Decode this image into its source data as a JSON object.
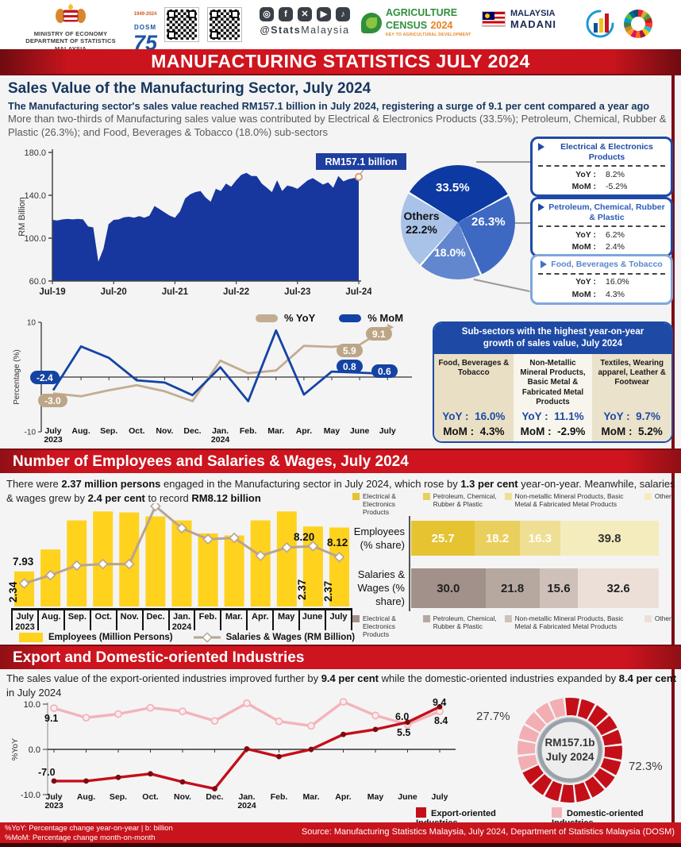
{
  "header": {
    "ministry1": "MINISTRY OF ECONOMY",
    "ministry2": "DEPARTMENT OF STATISTICS MALAYSIA",
    "dosm_top": "1949-2024",
    "dosm_name": "DOSM",
    "dosm_75": "75",
    "handle_bold": "@Stats",
    "handle_rest": "Malaysia",
    "agri1": "AGRICULTURE",
    "agri2a": "CENSUS",
    "agri2b": "2024",
    "agri_tag": "KEY TO AGRICULTURAL DEVELOPMENT",
    "madani1": "MALAYSIA",
    "madani2": "MADANI"
  },
  "banner": {
    "title": "MANUFACTURING STATISTICS JULY 2024"
  },
  "labels": {
    "yoy": "YoY :",
    "mom": "MoM :"
  },
  "sales": {
    "title": "Sales Value of the Manufacturing Sector, July 2024",
    "lead_bold": "The Manufacturing sector's sales value reached RM157.1 billion in July 2024, registering a surge of 9.1 per cent compared a year ago",
    "lead_gray": "More than two-thirds of Manufacturing sales value was contributed by Electrical & Electronics Products (33.5%); Petroleum, Chemical, Rubber & Plastic (26.3%); and Food, Beverages & Tobacco (18.0%) sub-sectors",
    "cards": [
      {
        "title": "Electrical & Electronics Products",
        "yoy": "8.2%",
        "mom": "-5.2%"
      },
      {
        "title": "Petroleum, Chemical, Rubber & Plastic",
        "yoy": "6.2%",
        "mom": "2.4%"
      },
      {
        "title": "Food, Beverages & Tobacco",
        "yoy": "16.0%",
        "mom": "4.3%"
      }
    ],
    "subpanel": {
      "header": "Sub-sectors with the highest year-on-year growth of sales value, July 2024",
      "cols": [
        {
          "name": "Food, Beverages & Tobacco",
          "yoy": "16.0%",
          "mom": "4.3%"
        },
        {
          "name": "Non-Metallic Mineral Products, Basic Metal & Fabricated Metal Products",
          "yoy": "11.1%",
          "mom": "-2.9%"
        },
        {
          "name": "Textiles, Wearing apparel, Leather & Footwear",
          "yoy": "9.7%",
          "mom": "5.2%"
        }
      ]
    }
  },
  "employees": {
    "title": "Number of Employees and Salaries & Wages, July 2024",
    "intro": {
      "t1": "There were ",
      "b1": "2.37 million persons",
      "t2": " engaged in the Manufacturing sector in July 2024, which rose by ",
      "b2": "1.3 per cent",
      "t3": " year-on-year. Meanwhile, salaries & wages grew by ",
      "b3": "2.4 per cent",
      "t4": " to record ",
      "b4": "RM8.12 billion"
    }
  },
  "trade": {
    "title": "Export and Domestic-oriented Industries",
    "intro": {
      "t1": "The sales value of the export-oriented industries improved further by ",
      "b1": "9.4 per cent",
      "t2": " while the domestic-oriented industries expanded by ",
      "b2": "8.4 per cent",
      "t3": " in July 2024"
    }
  },
  "footer": {
    "note1": "%YoY: Percentage change year-on-year | b: billion",
    "note2": "%MoM: Percentage change month-on-month",
    "source": "Source: Manufacturing Statistics Malaysia, July 2024, Department of Statistics Malaysia (DOSM)"
  },
  "chart_data": {
    "sales_area": {
      "type": "area",
      "ylabel": "RM Billion",
      "ylim": [
        60,
        180
      ],
      "yticks": [
        "180.0",
        "140.0",
        "100.0",
        "60.0"
      ],
      "xticks": [
        "Jul-19",
        "Jul-20",
        "Jul-21",
        "Jul-22",
        "Jul-23",
        "Jul-24"
      ],
      "callout": "RM157.1 billion",
      "color": "#17379e",
      "values": [
        117,
        116.5,
        117.5,
        118,
        117.5,
        118,
        117.5,
        111,
        110,
        78,
        90,
        113,
        117,
        117.5,
        119.5,
        120,
        119,
        120.5,
        119,
        121,
        130,
        127,
        124,
        121,
        119,
        125,
        137,
        141,
        143,
        144,
        138,
        134,
        146,
        144,
        151,
        148,
        154,
        159,
        161,
        158,
        158,
        151,
        147,
        143,
        154,
        144,
        149,
        148,
        146,
        150,
        154,
        156,
        153,
        150,
        152,
        147,
        158,
        153,
        155,
        156,
        157.1
      ]
    },
    "sales_pie": {
      "type": "pie",
      "start_angle": -58,
      "others_word": "Others",
      "slices": [
        {
          "name": "Electrical & Electronics Products",
          "pct": 33.5,
          "label": "33.5%",
          "color": "#0d3aa2"
        },
        {
          "name": "Petroleum, Chemical, Rubber & Plastic",
          "pct": 26.3,
          "label": "26.3%",
          "color": "#3e69c3"
        },
        {
          "name": "Food, Beverages & Tobacco",
          "pct": 18.0,
          "label": "18.0%",
          "color": "#6287ce"
        },
        {
          "name": "Others",
          "pct": 22.2,
          "label": "22.2%",
          "color": "#a9c2e8"
        }
      ]
    },
    "sales_growth": {
      "type": "line",
      "ylabel": "Percentage (%)",
      "ylim": [
        -10,
        10
      ],
      "months": [
        "July\n2023",
        "Aug.",
        "Sep.",
        "Oct.",
        "Nov.",
        "Dec.",
        "Jan.\n2024",
        "Feb.",
        "Mar.",
        "Apr.",
        "May",
        "June",
        "July"
      ],
      "series": [
        {
          "name": "% YoY",
          "color": "#c2ad92",
          "values": [
            -3.0,
            -3.5,
            -2.4,
            -1.5,
            -2.6,
            -4.4,
            3.0,
            0.7,
            1.2,
            5.7,
            5.5,
            5.9,
            9.1
          ]
        },
        {
          "name": "% MoM",
          "color": "#1443a4",
          "values": [
            -2.4,
            5.6,
            3.5,
            -0.6,
            -1.0,
            -3.3,
            1.8,
            -4.4,
            8.5,
            -3.2,
            1.0,
            0.8,
            0.6
          ]
        }
      ],
      "point_labels": {
        "mom_first": "-2.4",
        "yoy_first": "-3.0",
        "yoy_jun": "5.9",
        "yoy_jul": "9.1",
        "mom_jun": "0.8",
        "mom_jul": "0.6"
      }
    },
    "employees_bar": {
      "type": "bar+line",
      "months": [
        "July\n2023",
        "Aug.",
        "Sep.",
        "Oct.",
        "Nov.",
        "Dec.",
        "Jan.\n2024",
        "Feb.",
        "Mar.",
        "Apr.",
        "May",
        "June",
        "July"
      ],
      "legend": [
        "Employees (Million Persons)",
        "Salaries & Wages (RM Billion)"
      ],
      "bar_color": "#ffd21e",
      "line_color": "#b8a493",
      "bar_rel_heights": [
        0.35,
        0.57,
        0.86,
        0.95,
        0.94,
        0.9,
        0.86,
        0.73,
        0.71,
        0.86,
        0.95,
        0.8,
        0.79
      ],
      "line_values": [
        7.93,
        7.99,
        8.06,
        8.07,
        8.07,
        8.49,
        8.33,
        8.25,
        8.26,
        8.13,
        8.19,
        8.2,
        8.12
      ],
      "labels": {
        "emp_first": "2.34",
        "emp_jun": "2.37",
        "emp_jul": "2.37",
        "sal_first": "7.93",
        "sal_jun": "8.20",
        "sal_jul": "8.12"
      }
    },
    "share_stacked": {
      "type": "stacked-bar",
      "legend": [
        "Electrical & Electronics Products",
        "Petroleum, Chemical, Rubber & Plastic",
        "Non-metallic Mineral Products, Basic Metal & Fabricated Metal Products",
        "Others"
      ],
      "rows": [
        {
          "label": "Employees (% share)",
          "values": [
            25.7,
            18.2,
            16.3,
            39.8
          ],
          "colors": [
            "#e5c331",
            "#e9cf5e",
            "#efdf94",
            "#f4ecbc"
          ],
          "text_colors": [
            "#fff",
            "#fff",
            "#fff",
            "#333"
          ]
        },
        {
          "label": "Salaries & Wages (% share)",
          "values": [
            30.0,
            21.8,
            15.6,
            32.6
          ],
          "colors": [
            "#a2918a",
            "#b7a89f",
            "#cfc1b9",
            "#ecdfd8"
          ],
          "text_colors": [
            "#222",
            "#222",
            "#222",
            "#222"
          ]
        }
      ]
    },
    "trade_line": {
      "type": "line",
      "ylabel": "%YoY",
      "yticks": [
        "10.0",
        "0.0",
        "-10.0"
      ],
      "months": [
        "July\n2023",
        "Aug.",
        "Sep.",
        "Oct.",
        "Nov.",
        "Dec.",
        "Jan.\n2024",
        "Feb.",
        "Mar.",
        "Apr.",
        "May",
        "June",
        "July"
      ],
      "series": [
        {
          "name": "Export-oriented Industries",
          "color": "#c40f18",
          "values": [
            -7.0,
            -7.0,
            -6.2,
            -5.4,
            -7.2,
            -8.7,
            0.1,
            -1.6,
            0.0,
            3.3,
            4.4,
            6.0,
            9.4
          ]
        },
        {
          "name": "Domestic-oriented Industries",
          "color": "#f2b4b9",
          "values": [
            9.1,
            7.0,
            7.8,
            9.2,
            8.4,
            6.3,
            10.2,
            6.2,
            5.2,
            10.5,
            7.5,
            5.5,
            8.4
          ]
        }
      ],
      "point_labels": {
        "dom_first": "9.1",
        "exp_first": "-7.0",
        "exp_jul": "9.4",
        "dom_jul": "8.4",
        "exp_jun": "6.0",
        "dom_jun": "5.5"
      }
    },
    "trade_donut": {
      "type": "donut",
      "segments": [
        {
          "name": "Export-oriented Industries",
          "pct": 72.3,
          "color": "#c40f18"
        },
        {
          "name": "Domestic-oriented Industries",
          "pct": 27.7,
          "color": "#f2aeb3"
        }
      ],
      "export_label": "72.3%",
      "domestic_label": "27.7%",
      "center_line1": "RM157.1b",
      "center_line2": "July 2024"
    }
  }
}
